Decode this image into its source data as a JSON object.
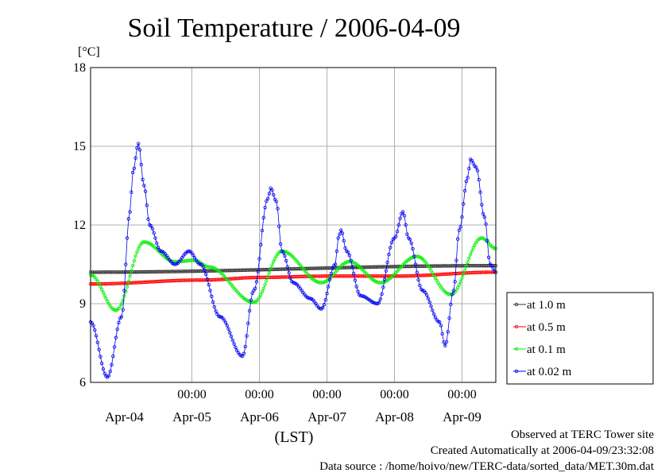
{
  "title": "Soil Temperature / 2006-04-09",
  "y_unit": "[°C]",
  "x_axis_label": "(LST)",
  "footer": [
    "Observed at TERC Tower site",
    "Created Automatically at 2006-04-09/23:32:08",
    "Data source : /home/hoivo/new/TERC-data/sorted_data/MET.30m.dat"
  ],
  "chart_data": {
    "type": "line",
    "title": "Soil Temperature / 2006-04-09",
    "xlabel": "(LST)",
    "ylabel": "[°C]",
    "x_unit": "hours since 2006-04-03 12:00",
    "xlim": [
      0,
      144
    ],
    "ylim": [
      6,
      18
    ],
    "y_ticks": [
      6,
      9,
      12,
      15,
      18
    ],
    "x_time_ticks": [
      {
        "x": 36,
        "label": "00:00"
      },
      {
        "x": 60,
        "label": "00:00"
      },
      {
        "x": 84,
        "label": "00:00"
      },
      {
        "x": 108,
        "label": "00:00"
      },
      {
        "x": 132,
        "label": "00:00"
      }
    ],
    "x_date_labels": [
      {
        "x": 12,
        "label": "Apr-04"
      },
      {
        "x": 36,
        "label": "Apr-05"
      },
      {
        "x": 60,
        "label": "Apr-06"
      },
      {
        "x": 84,
        "label": "Apr-07"
      },
      {
        "x": 108,
        "label": "Apr-08"
      },
      {
        "x": 132,
        "label": "Apr-09"
      }
    ],
    "grid": true,
    "legend_position": "right",
    "series": [
      {
        "name": "at 1.0 m",
        "color": "#333333",
        "marker_every_hours": 0.5,
        "points": [
          [
            0,
            10.2
          ],
          [
            144,
            10.45
          ]
        ]
      },
      {
        "name": "at 0.5 m",
        "color": "#ff0000",
        "marker_every_hours": 0.5,
        "points": [
          [
            0,
            9.75
          ],
          [
            40,
            9.9
          ],
          [
            60,
            10.0
          ],
          [
            84,
            10.05
          ],
          [
            108,
            10.05
          ],
          [
            144,
            10.2
          ]
        ]
      },
      {
        "name": "at 0.1 m",
        "color": "#00ee00",
        "marker_every_hours": 0.5,
        "points": [
          [
            0,
            10.1
          ],
          [
            9,
            8.75
          ],
          [
            19,
            11.35
          ],
          [
            30,
            10.6
          ],
          [
            37,
            10.65
          ],
          [
            42,
            10.4
          ],
          [
            58,
            9.05
          ],
          [
            68,
            11.0
          ],
          [
            82,
            9.8
          ],
          [
            92,
            10.6
          ],
          [
            103,
            9.8
          ],
          [
            116,
            10.8
          ],
          [
            128,
            9.35
          ],
          [
            139,
            11.5
          ],
          [
            144,
            11.1
          ]
        ]
      },
      {
        "name": "at 0.02 m",
        "color": "#0000ee",
        "marker_every_hours": 0.5,
        "points": [
          [
            0,
            8.3
          ],
          [
            6,
            6.2
          ],
          [
            11,
            8.5
          ],
          [
            14,
            12.5
          ],
          [
            15,
            14.0
          ],
          [
            17,
            15.1
          ],
          [
            19,
            13.5
          ],
          [
            21,
            12.0
          ],
          [
            25,
            11.0
          ],
          [
            30,
            10.5
          ],
          [
            35,
            11.0
          ],
          [
            39,
            10.5
          ],
          [
            46,
            8.5
          ],
          [
            54,
            7.0
          ],
          [
            58,
            9.5
          ],
          [
            63,
            13.0
          ],
          [
            64,
            13.4
          ],
          [
            66,
            12.9
          ],
          [
            68,
            11.0
          ],
          [
            72,
            9.8
          ],
          [
            78,
            9.2
          ],
          [
            82,
            8.8
          ],
          [
            87,
            10.5
          ],
          [
            88,
            11.5
          ],
          [
            89,
            11.8
          ],
          [
            91,
            11.0
          ],
          [
            96,
            9.3
          ],
          [
            102,
            9.0
          ],
          [
            108,
            11.5
          ],
          [
            111,
            12.5
          ],
          [
            113,
            11.5
          ],
          [
            118,
            9.5
          ],
          [
            124,
            8.3
          ],
          [
            126,
            7.4
          ],
          [
            129,
            9.5
          ],
          [
            131,
            11.8
          ],
          [
            134,
            13.8
          ],
          [
            135,
            14.5
          ],
          [
            137,
            14.2
          ],
          [
            140,
            12.3
          ],
          [
            142,
            10.5
          ],
          [
            144,
            10.2
          ]
        ]
      }
    ]
  }
}
